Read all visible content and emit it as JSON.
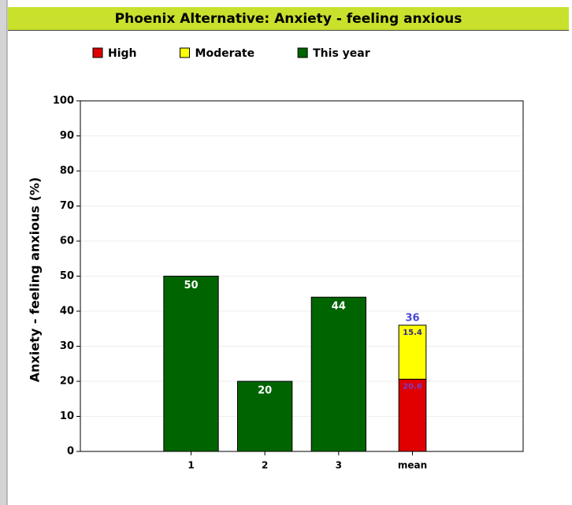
{
  "chart_data": {
    "type": "bar",
    "title": "Phoenix Alternative: Anxiety - feeling anxious",
    "ylabel": "Anxiety - feeling anxious (%)",
    "categories": [
      "1",
      "2",
      "3",
      "mean"
    ],
    "series": [
      {
        "name": "High",
        "color": "#e00000",
        "stacked": true,
        "values": [
          null,
          null,
          null,
          20.6
        ]
      },
      {
        "name": "Moderate",
        "color": "#ffff00",
        "stacked": true,
        "values": [
          null,
          null,
          null,
          15.4
        ]
      },
      {
        "name": "This year",
        "color": "#006400",
        "stacked": false,
        "values": [
          50,
          20,
          44,
          null
        ]
      }
    ],
    "totals": [
      null,
      null,
      null,
      36
    ],
    "ylim": [
      0,
      100
    ],
    "yticks": [
      0,
      10,
      20,
      30,
      40,
      50,
      60,
      70,
      80,
      90,
      100
    ],
    "grid": true,
    "legend": "top-left"
  }
}
